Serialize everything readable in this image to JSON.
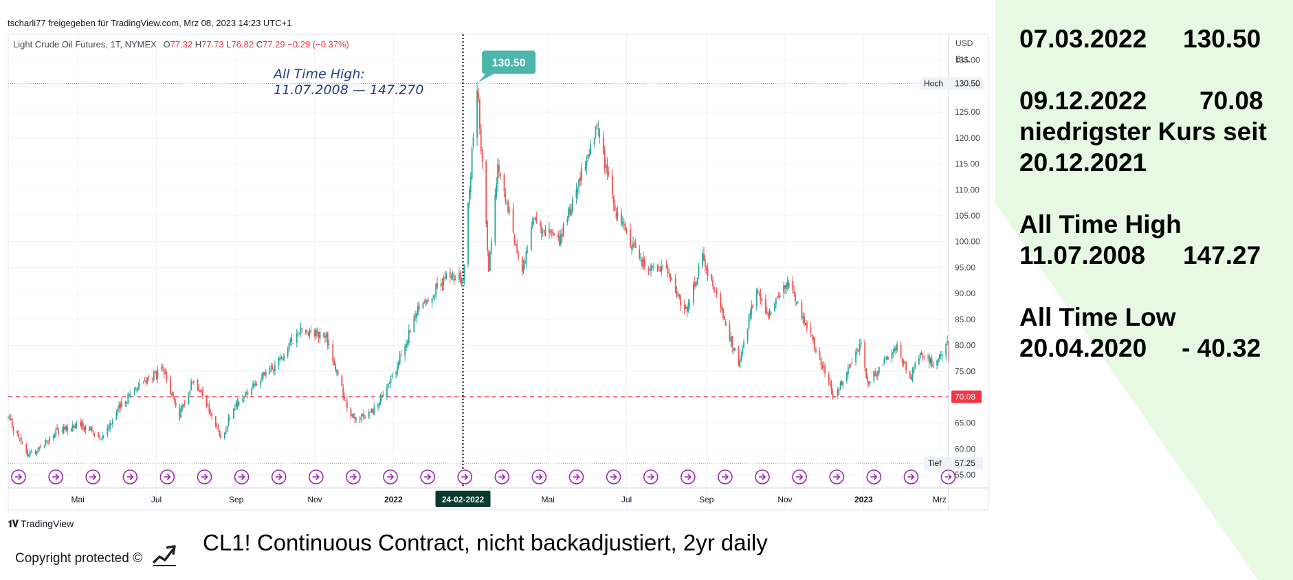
{
  "header": {
    "share_line": "tscharli77 freigegeben für TradingView.com, Mrz 08, 2023 14:23 UTC+1",
    "symbol": "Light Crude Oil Futures, 1T, NYMEX",
    "open_label": "O",
    "open": "77.32",
    "high_label": "H",
    "high": "77.73",
    "low_label": "L",
    "low": "76.82",
    "close_label": "C",
    "close": "77.29",
    "change": "−0.29 (−0.37%)"
  },
  "annotation": {
    "ath_line1": "All Time High:",
    "ath_line2": "11.07.2008 —  147.270",
    "peak_label": "130.50",
    "crosshair_date": "24-02-2022"
  },
  "price_axis": {
    "currency": "USD",
    "unit": "BLL",
    "high_tag": "Hoch",
    "high_value": "130.50",
    "low_tag": "Tief",
    "low_value": "57.25",
    "support_value": "70.08"
  },
  "footer": {
    "brand": "TradingView",
    "copyright": "Copyright protected ©",
    "caption": "CL1! Continuous Contract, nicht backadjustiert, 2yr daily"
  },
  "info_panel": {
    "l1_date": "07.03.2022",
    "l1_value": "130.50",
    "l2_date": "09.12.2022",
    "l2_value": "70.08",
    "l2_note1": "niedrigster Kurs seit",
    "l2_note2": "20.12.2021",
    "ath_title": "All Time High",
    "ath_date": "11.07.2008",
    "ath_value": "147.27",
    "atl_title": "All Time Low",
    "atl_date": "20.04.2020",
    "atl_value": "- 40.32"
  },
  "colors": {
    "up": "#26a69a",
    "down": "#ef5350",
    "support_line": "#f23645",
    "peak_label_bg": "#4db6ac",
    "event_icon": "#9c27b0",
    "panel_green": "#e8f9e3"
  },
  "chart_data": {
    "type": "candlestick",
    "title": "Light Crude Oil Futures, 1T, NYMEX",
    "ylabel": "USD BLL",
    "ylim": [
      52.5,
      140
    ],
    "y_ticks": [
      55,
      60,
      65,
      70,
      75,
      80,
      85,
      90,
      95,
      100,
      105,
      110,
      115,
      120,
      125,
      130,
      135
    ],
    "y_tick_labels": [
      "55.00",
      "60.00",
      "65.00",
      "70.00",
      "75.00",
      "80.00",
      "85.00",
      "90.00",
      "95.00",
      "100.00",
      "105.00",
      "110.00",
      "115.00",
      "120.00",
      "125.00",
      "130.00",
      "135.00"
    ],
    "x_range": [
      "2021-03-08",
      "2023-03-08"
    ],
    "x_ticks": [
      {
        "label": "Mai",
        "date": "2021-05-01",
        "bold": false
      },
      {
        "label": "Jul",
        "date": "2021-07-01",
        "bold": false
      },
      {
        "label": "Sep",
        "date": "2021-09-01",
        "bold": false
      },
      {
        "label": "Nov",
        "date": "2021-11-01",
        "bold": false
      },
      {
        "label": "2022",
        "date": "2022-01-01",
        "bold": true
      },
      {
        "label": "Mai",
        "date": "2022-05-01",
        "bold": false
      },
      {
        "label": "Jul",
        "date": "2022-07-01",
        "bold": false
      },
      {
        "label": "Sep",
        "date": "2022-09-01",
        "bold": false
      },
      {
        "label": "Nov",
        "date": "2022-11-01",
        "bold": false
      },
      {
        "label": "2023",
        "date": "2023-01-01",
        "bold": true
      },
      {
        "label": "Mrz",
        "date": "2023-03-01",
        "bold": false
      }
    ],
    "crosshair_date": "2022-02-24",
    "high_line": 130.5,
    "low_line": 57.25,
    "support_line": 70.08,
    "price_path": [
      [
        "2021-03-08",
        66.0
      ],
      [
        "2021-03-23",
        58.8
      ],
      [
        "2021-04-01",
        60.2
      ],
      [
        "2021-04-14",
        63.2
      ],
      [
        "2021-05-01",
        64.8
      ],
      [
        "2021-05-20",
        62.5
      ],
      [
        "2021-06-01",
        67.5
      ],
      [
        "2021-06-15",
        72.0
      ],
      [
        "2021-07-06",
        75.2
      ],
      [
        "2021-07-19",
        66.4
      ],
      [
        "2021-07-30",
        73.9
      ],
      [
        "2021-08-20",
        62.3
      ],
      [
        "2021-09-01",
        68.5
      ],
      [
        "2021-09-15",
        72.6
      ],
      [
        "2021-10-01",
        75.9
      ],
      [
        "2021-10-20",
        83.1
      ],
      [
        "2021-10-28",
        82.8
      ],
      [
        "2021-11-10",
        81.4
      ],
      [
        "2021-11-26",
        68.2
      ],
      [
        "2021-12-02",
        65.2
      ],
      [
        "2021-12-20",
        68.2
      ],
      [
        "2022-01-03",
        75.2
      ],
      [
        "2022-01-20",
        86.9
      ],
      [
        "2022-02-11",
        93.1
      ],
      [
        "2022-02-24",
        92.8
      ],
      [
        "2022-03-07",
        130.5
      ],
      [
        "2022-03-16",
        95.0
      ],
      [
        "2022-03-23",
        114.9
      ],
      [
        "2022-04-11",
        94.3
      ],
      [
        "2022-04-20",
        104.0
      ],
      [
        "2022-05-10",
        100.0
      ],
      [
        "2022-06-08",
        122.1
      ],
      [
        "2022-06-22",
        106.2
      ],
      [
        "2022-07-05",
        99.5
      ],
      [
        "2022-07-14",
        95.8
      ],
      [
        "2022-08-01",
        94.0
      ],
      [
        "2022-08-16",
        86.5
      ],
      [
        "2022-08-29",
        97.0
      ],
      [
        "2022-09-26",
        76.7
      ],
      [
        "2022-10-10",
        91.1
      ],
      [
        "2022-10-19",
        85.6
      ],
      [
        "2022-11-04",
        92.6
      ],
      [
        "2022-11-28",
        77.2
      ],
      [
        "2022-12-09",
        70.08
      ],
      [
        "2022-12-30",
        80.3
      ],
      [
        "2023-01-04",
        72.8
      ],
      [
        "2023-01-27",
        79.7
      ],
      [
        "2023-02-06",
        73.4
      ],
      [
        "2023-02-14",
        78.9
      ],
      [
        "2023-02-24",
        76.3
      ],
      [
        "2023-03-07",
        80.5
      ],
      [
        "2023-03-08",
        77.29
      ]
    ]
  }
}
